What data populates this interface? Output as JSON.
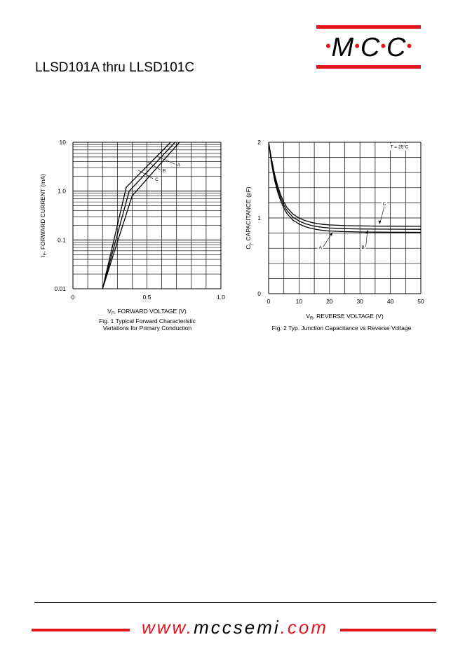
{
  "header": {
    "title": "LLSD101A  thru  LLSD101C",
    "logo": {
      "letters": [
        "M",
        "C",
        "C"
      ],
      "accent_color": "#e3141b"
    }
  },
  "chart_data": [
    {
      "type": "line",
      "title": "Fig. 1  Typical Forward Characteristic",
      "subtitle": "Variations for Primary Conduction",
      "xlabel": "V_F, FORWARD VOLTAGE (V)",
      "ylabel": "I_F, FORWARD CURRENT (mA)",
      "x_scale": "linear",
      "y_scale": "log",
      "xlim": [
        0,
        1.0
      ],
      "ylim": [
        0.01,
        10
      ],
      "x_ticks": [
        0,
        0.5,
        1.0
      ],
      "x_tick_labels": [
        "0",
        "0.5",
        "1.0"
      ],
      "y_ticks": [
        10,
        1.0,
        0.1,
        0.01
      ],
      "y_tick_labels": [
        "10",
        "1.0",
        "0.1",
        "0.01"
      ],
      "grid": true,
      "series": [
        {
          "name": "A",
          "x": [
            0.2,
            0.36,
            0.66
          ],
          "y": [
            0.01,
            1.2,
            10
          ]
        },
        {
          "name": "B",
          "x": [
            0.2,
            0.38,
            0.69
          ],
          "y": [
            0.01,
            1.0,
            10
          ]
        },
        {
          "name": "C",
          "x": [
            0.2,
            0.4,
            0.72
          ],
          "y": [
            0.01,
            0.8,
            10
          ]
        }
      ],
      "annotations": [
        {
          "label": "A",
          "x": 0.6,
          "y": 4.2
        },
        {
          "label": "B",
          "x": 0.53,
          "y": 3.3
        },
        {
          "label": "C",
          "x": 0.47,
          "y": 2.2
        }
      ]
    },
    {
      "type": "line",
      "title": "Fig. 2  Typ. Junction Capacitance vs Reverse Voltage",
      "xlabel": "V_R, REVERSE VOLTAGE (V)",
      "ylabel": "C_j, CAPACITANCE (pF)",
      "xlim": [
        0,
        50
      ],
      "ylim": [
        0,
        2
      ],
      "x_ticks": [
        0,
        10,
        20,
        30,
        40,
        50
      ],
      "x_tick_labels": [
        "0",
        "10",
        "20",
        "30",
        "40",
        "50"
      ],
      "y_ticks": [
        2,
        1,
        0
      ],
      "y_tick_labels": [
        "2",
        "1",
        "0"
      ],
      "grid": true,
      "condition_label": "T = 25°C",
      "series": [
        {
          "name": "A",
          "x": [
            0,
            1,
            2,
            3,
            4,
            5,
            6,
            8,
            10,
            12,
            14,
            16,
            18,
            20,
            25,
            30,
            35,
            40,
            45,
            50
          ],
          "y": [
            2.0,
            1.71,
            1.49,
            1.34,
            1.22,
            1.13,
            1.06,
            0.97,
            0.92,
            0.885,
            0.862,
            0.846,
            0.835,
            0.828,
            0.819,
            0.815,
            0.813,
            0.812,
            0.811,
            0.81
          ]
        },
        {
          "name": "B",
          "x": [
            0,
            1,
            2,
            3,
            4,
            5,
            6,
            8,
            10,
            12,
            14,
            16,
            18,
            20,
            25,
            30,
            35,
            40,
            45,
            50
          ],
          "y": [
            2.0,
            1.74,
            1.53,
            1.38,
            1.26,
            1.17,
            1.1,
            1.01,
            0.96,
            0.925,
            0.902,
            0.886,
            0.875,
            0.868,
            0.859,
            0.855,
            0.853,
            0.852,
            0.851,
            0.85
          ]
        },
        {
          "name": "C",
          "x": [
            0,
            1,
            2,
            3,
            4,
            5,
            6,
            8,
            10,
            12,
            14,
            16,
            18,
            20,
            25,
            30,
            35,
            40,
            45,
            50
          ],
          "y": [
            2.0,
            1.77,
            1.57,
            1.42,
            1.3,
            1.21,
            1.14,
            1.05,
            1.0,
            0.965,
            0.942,
            0.926,
            0.915,
            0.908,
            0.899,
            0.895,
            0.893,
            0.892,
            0.891,
            0.89
          ]
        }
      ],
      "annotations": [
        {
          "label": "A",
          "x": 17,
          "y": 0.6
        },
        {
          "label": "B",
          "x": 31,
          "y": 0.6
        },
        {
          "label": "C",
          "x": 38,
          "y": 1.18
        }
      ]
    }
  ],
  "footer": {
    "url_prefix": "www.",
    "url_domain": "mccsemi",
    "url_suffix": ".com",
    "accent_color": "#e3141b"
  }
}
